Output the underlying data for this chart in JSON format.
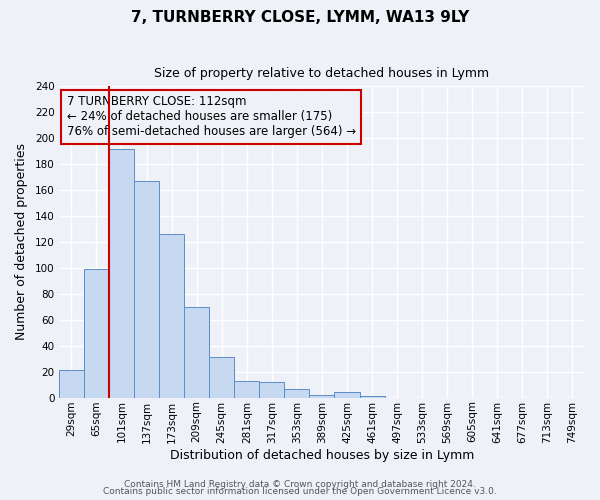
{
  "title": "7, TURNBERRY CLOSE, LYMM, WA13 9LY",
  "subtitle": "Size of property relative to detached houses in Lymm",
  "xlabel": "Distribution of detached houses by size in Lymm",
  "ylabel": "Number of detached properties",
  "bin_labels": [
    "29sqm",
    "65sqm",
    "101sqm",
    "137sqm",
    "173sqm",
    "209sqm",
    "245sqm",
    "281sqm",
    "317sqm",
    "353sqm",
    "389sqm",
    "425sqm",
    "461sqm",
    "497sqm",
    "533sqm",
    "569sqm",
    "605sqm",
    "641sqm",
    "677sqm",
    "713sqm",
    "749sqm"
  ],
  "bar_heights": [
    21,
    99,
    191,
    167,
    126,
    70,
    31,
    13,
    12,
    7,
    2,
    4,
    1,
    0,
    0,
    0,
    0,
    0,
    0,
    0,
    0
  ],
  "bar_color": "#c6d9f0",
  "bar_edge_color": "#5b8dc8",
  "vline_color": "#cc0000",
  "vline_x_index": 2,
  "ylim": [
    0,
    240
  ],
  "yticks": [
    0,
    20,
    40,
    60,
    80,
    100,
    120,
    140,
    160,
    180,
    200,
    220,
    240
  ],
  "annotation_title": "7 TURNBERRY CLOSE: 112sqm",
  "annotation_line1": "← 24% of detached houses are smaller (175)",
  "annotation_line2": "76% of semi-detached houses are larger (564) →",
  "footer1": "Contains HM Land Registry data © Crown copyright and database right 2024.",
  "footer2": "Contains public sector information licensed under the Open Government Licence v3.0.",
  "bg_color": "#eef2f8",
  "grid_color": "#ffffff",
  "title_fontsize": 11,
  "subtitle_fontsize": 9,
  "axis_label_fontsize": 9,
  "tick_fontsize": 7.5,
  "ann_fontsize": 8.5,
  "footer_fontsize": 6.5
}
